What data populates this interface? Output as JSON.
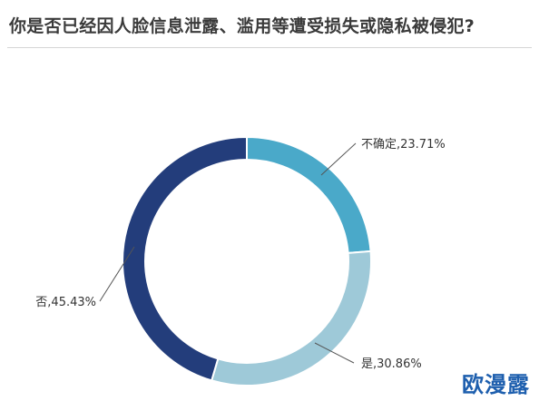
{
  "title": "你是否已经因人脸信息泄露、滥用等遭受损失或隐私被侵犯?",
  "watermark": "欧漫露",
  "chart_data": {
    "type": "pie",
    "variant": "donut",
    "title": "你是否已经因人脸信息泄露、滥用等遭受损失或隐私被侵犯?",
    "slices": [
      {
        "label": "不确定",
        "value": 23.71,
        "display": "不确定,23.71%",
        "color": "#4aa9c9"
      },
      {
        "label": "是",
        "value": 30.86,
        "display": "是,30.86%",
        "color": "#9ec9d8"
      },
      {
        "label": "否",
        "value": 45.43,
        "display": "否,45.43%",
        "color": "#233d7b"
      }
    ],
    "start": "top, clockwise",
    "legend": "none",
    "labels": "outside with leader lines",
    "label_color": "#333333",
    "leader_color": "#555555"
  }
}
